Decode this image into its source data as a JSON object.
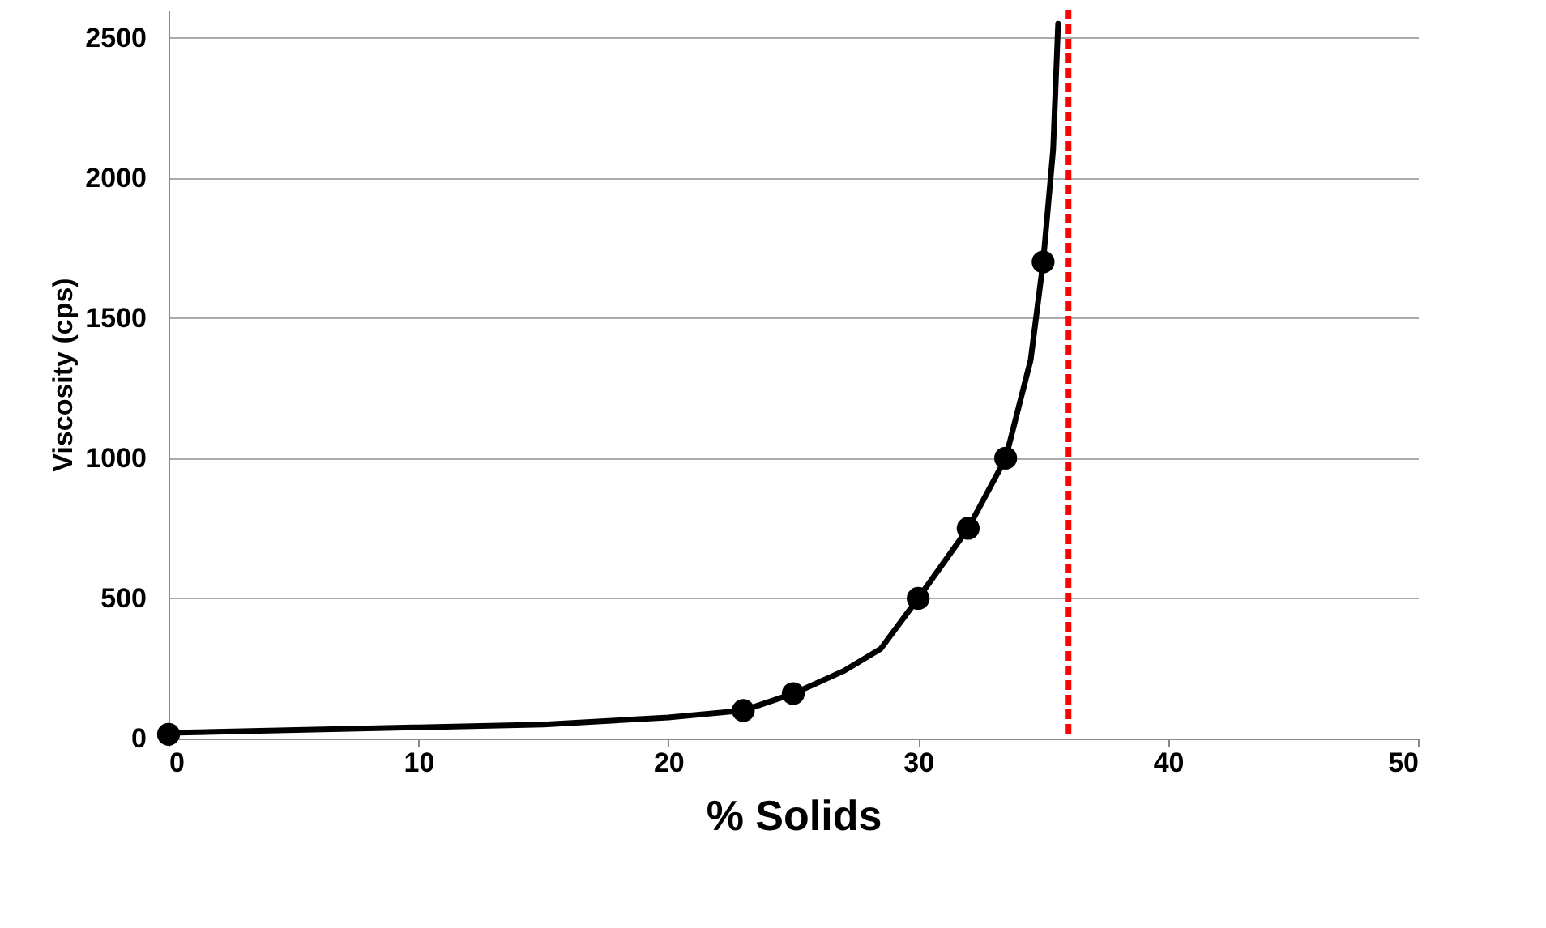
{
  "chart_data": {
    "type": "scatter",
    "xlabel": "% Solids",
    "ylabel": "Viscosity (cps)",
    "xlim": [
      0,
      50
    ],
    "xticks": [
      0,
      10,
      20,
      30,
      40,
      50
    ],
    "ylim": [
      0,
      2600
    ],
    "yticks": [
      0,
      500,
      1000,
      1500,
      2000,
      2500
    ],
    "grid": "y",
    "series": [
      {
        "type": "line",
        "color": "#000000",
        "marker": "none",
        "x": [
          0,
          10,
          15,
          20,
          23,
          25,
          27,
          28.5,
          30,
          32,
          33.5,
          34.5,
          35,
          35.4,
          35.6
        ],
        "values": [
          20,
          40,
          50,
          75,
          100,
          160,
          240,
          320,
          500,
          750,
          1000,
          1350,
          1700,
          2100,
          2550
        ]
      },
      {
        "color": "#000000",
        "marker": "circle",
        "x": [
          0,
          23,
          25,
          30,
          32,
          33.5,
          35
        ],
        "values": [
          15,
          100,
          160,
          500,
          750,
          1000,
          1700
        ]
      }
    ],
    "ref_lines": [
      {
        "axis": "x",
        "value": 36,
        "color": "#ff0000",
        "line_style": "dashed"
      }
    ]
  }
}
